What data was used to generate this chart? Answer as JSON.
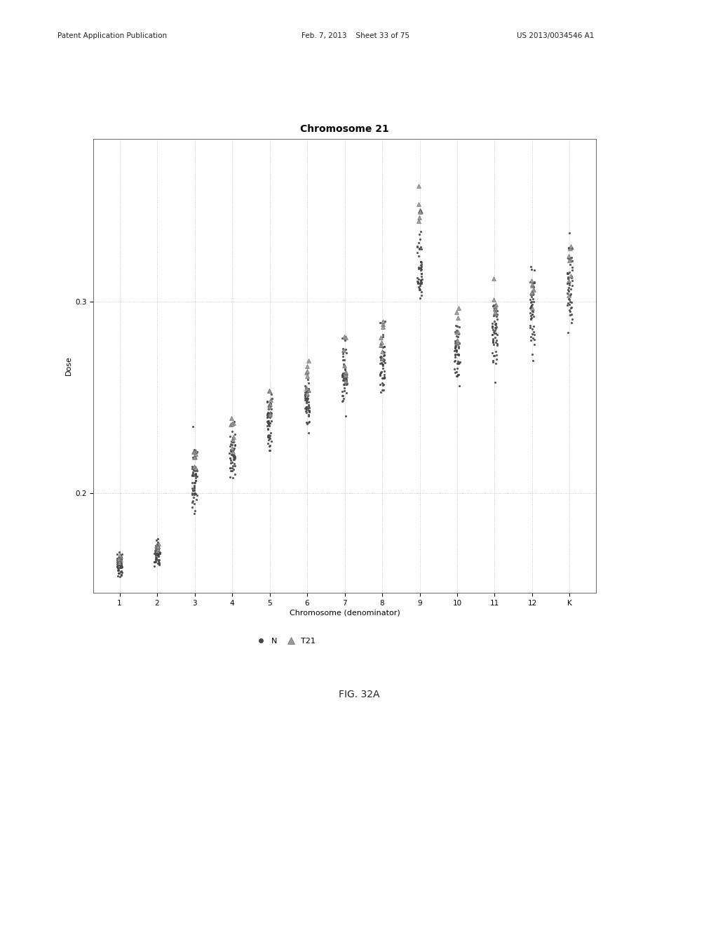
{
  "title": "Chromosome 21",
  "xlabel": "Chromosome (denominator)",
  "ylabel": "Dose",
  "ylim": [
    0.148,
    0.385
  ],
  "xlim": [
    0.3,
    13.7
  ],
  "xticks": [
    1,
    2,
    3,
    4,
    5,
    6,
    7,
    8,
    9,
    10,
    11,
    12,
    13
  ],
  "xticklabels": [
    "1",
    "2",
    "3",
    "4",
    "5",
    "6",
    "7",
    "8",
    "9",
    "10",
    "11",
    "12",
    "K"
  ],
  "yticks": [
    0.2,
    0.3
  ],
  "n_color": "#444444",
  "t21_color": "#999999",
  "background_color": "#ffffff",
  "grid_color": "#bbbbbb",
  "fig_caption": "FIG. 32A",
  "patent_left": "Patent Application Publication",
  "patent_center": "Feb. 7, 2013    Sheet 33 of 75",
  "patent_right": "US 2013/0034546 A1",
  "chromosome_means": [
    0.163,
    0.168,
    0.205,
    0.22,
    0.237,
    0.249,
    0.261,
    0.268,
    0.315,
    0.273,
    0.283,
    0.294,
    0.308
  ],
  "t21_offset": [
    0.003,
    0.004,
    0.012,
    0.01,
    0.009,
    0.01,
    0.01,
    0.012,
    0.03,
    0.01,
    0.012,
    0.012,
    0.015
  ],
  "n_spread": [
    0.006,
    0.006,
    0.014,
    0.015,
    0.013,
    0.013,
    0.014,
    0.015,
    0.016,
    0.014,
    0.016,
    0.018,
    0.022
  ],
  "t21_spread": [
    0.003,
    0.003,
    0.01,
    0.009,
    0.009,
    0.01,
    0.011,
    0.012,
    0.018,
    0.012,
    0.013,
    0.014,
    0.018
  ],
  "n_count": [
    50,
    50,
    50,
    50,
    50,
    50,
    50,
    50,
    50,
    50,
    50,
    50,
    50
  ],
  "t21_count": [
    8,
    8,
    8,
    8,
    8,
    8,
    8,
    8,
    8,
    8,
    8,
    8,
    8
  ],
  "seed": 42
}
